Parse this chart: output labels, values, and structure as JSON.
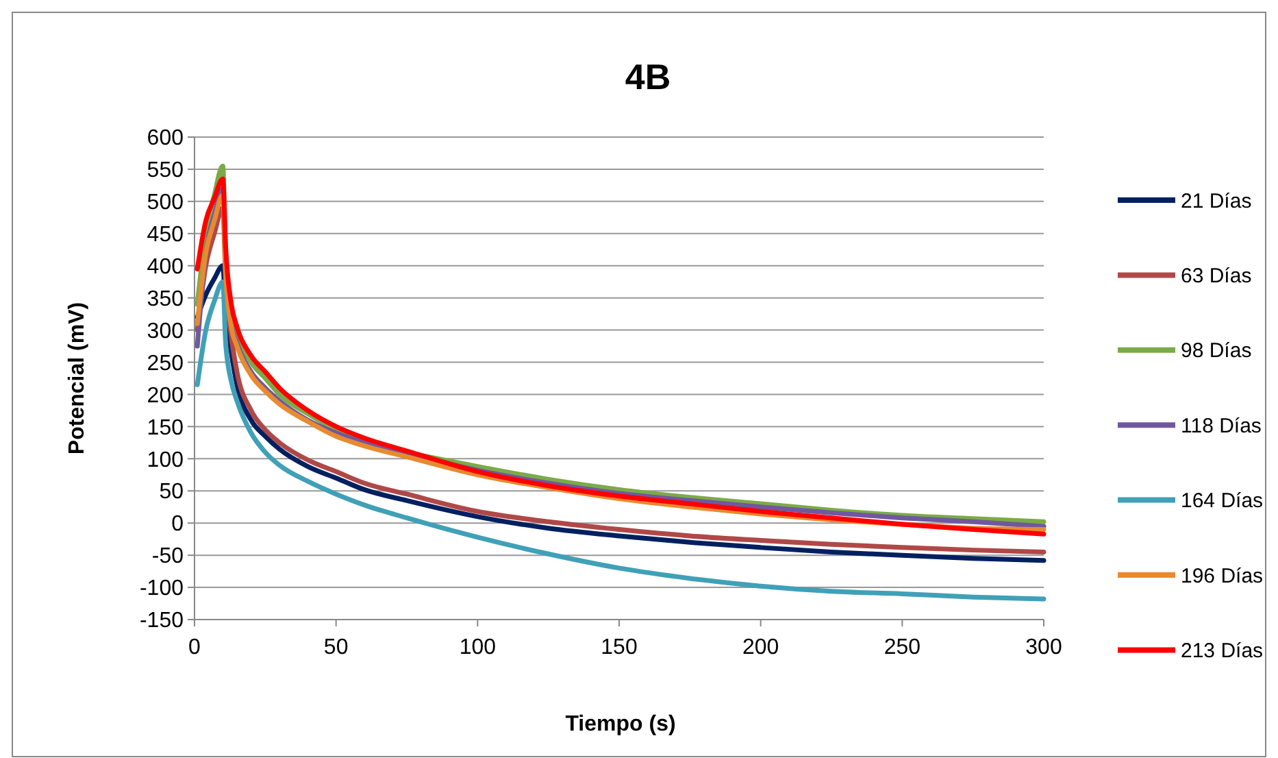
{
  "chart_data": {
    "type": "line",
    "title": "4B",
    "xlabel": "Tiempo (s)",
    "ylabel": "Potencial (mV)",
    "x": [
      1,
      4,
      7,
      10,
      11,
      13,
      15,
      20,
      25,
      30,
      40,
      50,
      60,
      75,
      100,
      125,
      150,
      175,
      200,
      225,
      250,
      275,
      300
    ],
    "xlim": [
      0,
      300
    ],
    "xticks": [
      0,
      50,
      100,
      150,
      200,
      250,
      300
    ],
    "ylim": [
      -150,
      600
    ],
    "yticks": [
      -150,
      -100,
      -50,
      0,
      50,
      100,
      150,
      200,
      250,
      300,
      350,
      400,
      450,
      500,
      550,
      600
    ],
    "grid": "y",
    "legend": "right",
    "marker": "none",
    "line_style": "solid",
    "series": [
      {
        "name": "21 Días",
        "color": "#002060",
        "values": [
          320,
          355,
          380,
          400,
          330,
          265,
          215,
          160,
          135,
          115,
          88,
          70,
          52,
          35,
          10,
          -8,
          -20,
          -30,
          -38,
          -45,
          -50,
          -55,
          -58
        ]
      },
      {
        "name": "63 Días",
        "color": "#b04848",
        "values": [
          300,
          400,
          450,
          490,
          380,
          290,
          235,
          175,
          145,
          125,
          98,
          80,
          62,
          45,
          18,
          2,
          -10,
          -20,
          -27,
          -33,
          -38,
          -42,
          -45
        ]
      },
      {
        "name": "98 Días",
        "color": "#7bab48",
        "values": [
          340,
          450,
          510,
          555,
          420,
          330,
          295,
          250,
          225,
          200,
          170,
          145,
          125,
          110,
          88,
          68,
          52,
          40,
          30,
          20,
          12,
          7,
          2
        ]
      },
      {
        "name": "118 Días",
        "color": "#7058a0",
        "values": [
          275,
          420,
          480,
          520,
          400,
          310,
          280,
          235,
          210,
          190,
          160,
          140,
          125,
          108,
          82,
          62,
          46,
          35,
          25,
          16,
          8,
          2,
          -5
        ]
      },
      {
        "name": "164 Días",
        "color": "#40a0b8",
        "values": [
          215,
          300,
          345,
          375,
          280,
          220,
          190,
          140,
          110,
          90,
          65,
          45,
          28,
          8,
          -22,
          -48,
          -70,
          -86,
          -98,
          -106,
          -110,
          -115,
          -118
        ]
      },
      {
        "name": "196 Días",
        "color": "#e88a30",
        "values": [
          310,
          420,
          470,
          510,
          390,
          305,
          275,
          230,
          205,
          185,
          158,
          135,
          120,
          103,
          75,
          55,
          38,
          25,
          14,
          5,
          -2,
          -8,
          -10
        ]
      },
      {
        "name": "213 Días",
        "color": "#ff0000",
        "values": [
          395,
          470,
          505,
          535,
          430,
          340,
          305,
          260,
          235,
          210,
          175,
          150,
          132,
          112,
          80,
          58,
          42,
          30,
          18,
          8,
          -2,
          -10,
          -17
        ]
      }
    ]
  }
}
